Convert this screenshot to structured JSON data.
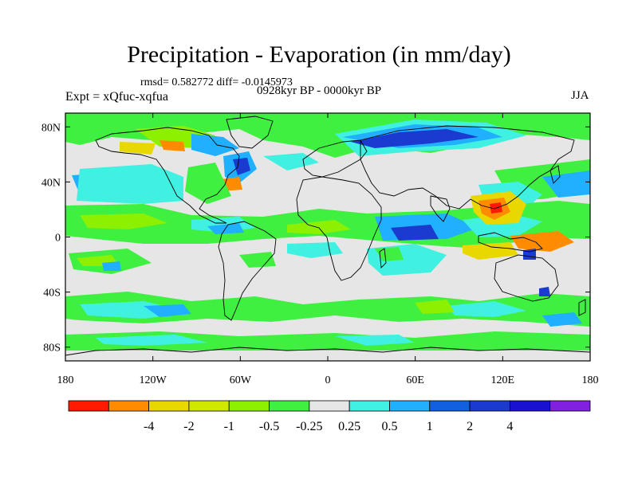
{
  "title": "Precipitation - Evaporation (in mm/day)",
  "stats": "rmsd= 0.582772  diff= -0.0145973",
  "period": "0928kyr BP - 0000kyr BP",
  "experiment": "Expt = xQfuc-xqfua",
  "season": "JJA",
  "map": {
    "projection": "cylindrical-equidistant",
    "lon_range": [
      -180,
      180
    ],
    "lat_range": [
      -90,
      90
    ],
    "lat_ticks": [
      "80N",
      "40N",
      "0",
      "40S",
      "80S"
    ],
    "lon_ticks": [
      "180",
      "120W",
      "60W",
      "0",
      "60E",
      "120E",
      "180"
    ],
    "background_color": "#e6e6e6",
    "coastline_color": "#000000"
  },
  "colorbar": {
    "colors": [
      "#ff1a00",
      "#ff8c00",
      "#e8d800",
      "#d0e800",
      "#8cf000",
      "#40f040",
      "#e6e6e6",
      "#40f0e0",
      "#20b0ff",
      "#1060e0",
      "#1a3ad0",
      "#1a10d0",
      "#8020e0"
    ],
    "labels": [
      "-4",
      "-2",
      "-1",
      "-0.5",
      "-0.25",
      "0.25",
      "0.5",
      "1",
      "2",
      "4"
    ]
  },
  "icons": {
    "continents": "continent-outline-icon"
  }
}
